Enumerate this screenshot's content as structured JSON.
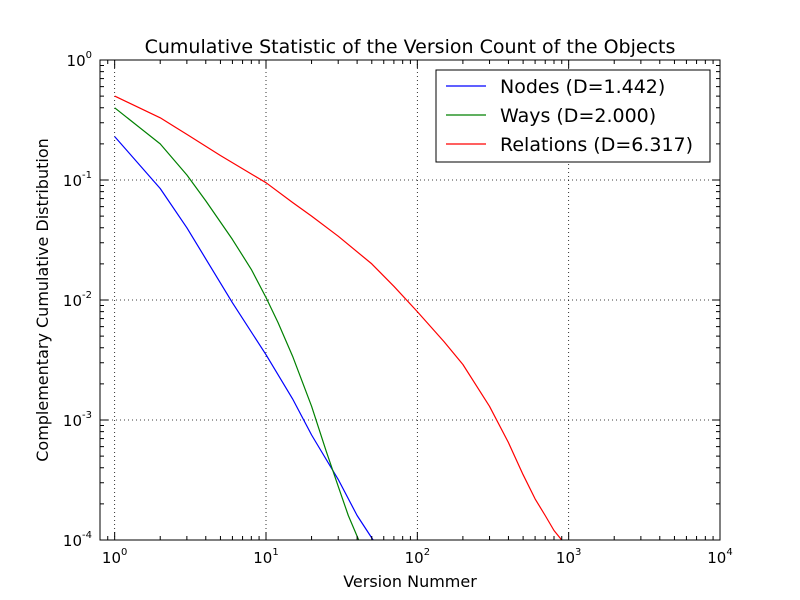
{
  "chart_data": {
    "type": "line",
    "title": "Cumulative Statistic of the Version Count of the Objects",
    "xlabel": "Version Nummer",
    "ylabel": "Complementary Cumulative Distribution",
    "x_scale": "log",
    "y_scale": "log",
    "xlim": [
      0.8,
      10000
    ],
    "ylim": [
      0.0001,
      1
    ],
    "grid": true,
    "legend_position": "top-right",
    "x_ticks": [
      {
        "base": "10",
        "exp": "0",
        "value": 1
      },
      {
        "base": "10",
        "exp": "1",
        "value": 10
      },
      {
        "base": "10",
        "exp": "2",
        "value": 100
      },
      {
        "base": "10",
        "exp": "3",
        "value": 1000
      },
      {
        "base": "10",
        "exp": "4",
        "value": 10000
      }
    ],
    "y_ticks": [
      {
        "base": "10",
        "exp": "0",
        "value": 1
      },
      {
        "base": "10",
        "exp": "-1",
        "value": 0.1
      },
      {
        "base": "10",
        "exp": "-2",
        "value": 0.01
      },
      {
        "base": "10",
        "exp": "-3",
        "value": 0.001
      },
      {
        "base": "10",
        "exp": "-4",
        "value": 0.0001
      }
    ],
    "series": [
      {
        "name": "Nodes (D=1.442)",
        "color": "#0000ff",
        "points": [
          [
            1,
            0.23
          ],
          [
            2,
            0.085
          ],
          [
            3,
            0.04
          ],
          [
            4,
            0.022
          ],
          [
            6,
            0.0095
          ],
          [
            10,
            0.0035
          ],
          [
            15,
            0.0015
          ],
          [
            20,
            0.00075
          ],
          [
            30,
            0.00032
          ],
          [
            40,
            0.00016
          ],
          [
            51,
            0.0001
          ]
        ]
      },
      {
        "name": "Ways (D=2.000)",
        "color": "#008000",
        "points": [
          [
            1,
            0.4
          ],
          [
            2,
            0.2
          ],
          [
            3,
            0.11
          ],
          [
            4,
            0.067
          ],
          [
            6,
            0.032
          ],
          [
            8,
            0.018
          ],
          [
            10,
            0.0105
          ],
          [
            12,
            0.0065
          ],
          [
            15,
            0.0034
          ],
          [
            20,
            0.0013
          ],
          [
            25,
            0.00055
          ],
          [
            30,
            0.00028
          ],
          [
            35,
            0.00016
          ],
          [
            41,
            0.0001
          ]
        ]
      },
      {
        "name": "Relations (D=6.317)",
        "color": "#ff0000",
        "points": [
          [
            1,
            0.5
          ],
          [
            2,
            0.33
          ],
          [
            3,
            0.24
          ],
          [
            5,
            0.16
          ],
          [
            10,
            0.095
          ],
          [
            15,
            0.065
          ],
          [
            20,
            0.05
          ],
          [
            30,
            0.034
          ],
          [
            50,
            0.02
          ],
          [
            70,
            0.013
          ],
          [
            100,
            0.008
          ],
          [
            150,
            0.0045
          ],
          [
            200,
            0.0029
          ],
          [
            300,
            0.0013
          ],
          [
            400,
            0.00065
          ],
          [
            500,
            0.00035
          ],
          [
            600,
            0.00022
          ],
          [
            700,
            0.00016
          ],
          [
            800,
            0.00012
          ],
          [
            900,
            0.0001
          ]
        ]
      }
    ]
  }
}
